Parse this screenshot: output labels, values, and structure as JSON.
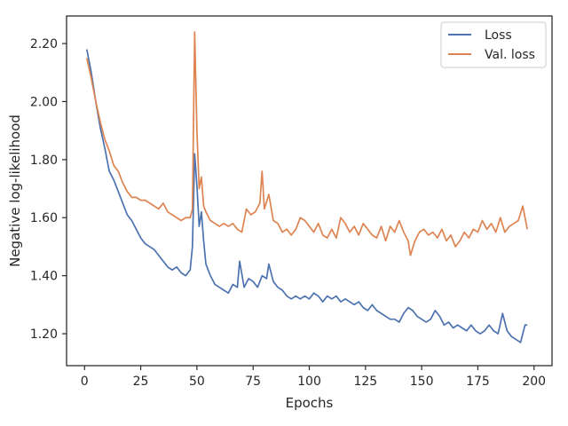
{
  "chart_data": {
    "type": "line",
    "xlabel": "Epochs",
    "ylabel": "Negative log-likelihood",
    "xlim": [
      -8,
      208
    ],
    "ylim": [
      1.09,
      2.295
    ],
    "x_ticks": [
      0,
      25,
      50,
      75,
      100,
      125,
      150,
      175,
      200
    ],
    "x_tick_labels": [
      "0",
      "25",
      "50",
      "75",
      "100",
      "125",
      "150",
      "175",
      "200"
    ],
    "y_ticks": [
      1.2,
      1.4,
      1.6,
      1.8,
      2.0,
      2.2
    ],
    "y_tick_labels": [
      "1.20",
      "1.40",
      "1.60",
      "1.80",
      "2.00",
      "2.20"
    ],
    "grid": false,
    "legend_position": "top-right",
    "series": [
      {
        "name": "Loss",
        "color": "#4c72b0",
        "points": [
          [
            1,
            2.18
          ],
          [
            3,
            2.1
          ],
          [
            5,
            2.0
          ],
          [
            7,
            1.91
          ],
          [
            9,
            1.84
          ],
          [
            11,
            1.76
          ],
          [
            13,
            1.73
          ],
          [
            15,
            1.69
          ],
          [
            17,
            1.65
          ],
          [
            19,
            1.61
          ],
          [
            21,
            1.59
          ],
          [
            23,
            1.56
          ],
          [
            25,
            1.53
          ],
          [
            27,
            1.51
          ],
          [
            29,
            1.5
          ],
          [
            31,
            1.49
          ],
          [
            33,
            1.47
          ],
          [
            35,
            1.45
          ],
          [
            37,
            1.43
          ],
          [
            39,
            1.42
          ],
          [
            41,
            1.43
          ],
          [
            43,
            1.41
          ],
          [
            45,
            1.4
          ],
          [
            47,
            1.42
          ],
          [
            48,
            1.5
          ],
          [
            49,
            1.82
          ],
          [
            50,
            1.71
          ],
          [
            51,
            1.57
          ],
          [
            52,
            1.62
          ],
          [
            53,
            1.52
          ],
          [
            54,
            1.44
          ],
          [
            56,
            1.4
          ],
          [
            58,
            1.37
          ],
          [
            60,
            1.36
          ],
          [
            62,
            1.35
          ],
          [
            64,
            1.34
          ],
          [
            66,
            1.37
          ],
          [
            68,
            1.36
          ],
          [
            69,
            1.45
          ],
          [
            71,
            1.36
          ],
          [
            73,
            1.39
          ],
          [
            75,
            1.38
          ],
          [
            77,
            1.36
          ],
          [
            79,
            1.4
          ],
          [
            81,
            1.39
          ],
          [
            82,
            1.44
          ],
          [
            84,
            1.38
          ],
          [
            86,
            1.36
          ],
          [
            88,
            1.35
          ],
          [
            90,
            1.33
          ],
          [
            92,
            1.32
          ],
          [
            94,
            1.33
          ],
          [
            96,
            1.32
          ],
          [
            98,
            1.33
          ],
          [
            100,
            1.32
          ],
          [
            102,
            1.34
          ],
          [
            104,
            1.33
          ],
          [
            106,
            1.31
          ],
          [
            108,
            1.33
          ],
          [
            110,
            1.32
          ],
          [
            112,
            1.33
          ],
          [
            114,
            1.31
          ],
          [
            116,
            1.32
          ],
          [
            118,
            1.31
          ],
          [
            120,
            1.3
          ],
          [
            122,
            1.31
          ],
          [
            124,
            1.29
          ],
          [
            126,
            1.28
          ],
          [
            128,
            1.3
          ],
          [
            130,
            1.28
          ],
          [
            132,
            1.27
          ],
          [
            134,
            1.26
          ],
          [
            136,
            1.25
          ],
          [
            138,
            1.25
          ],
          [
            140,
            1.24
          ],
          [
            142,
            1.27
          ],
          [
            144,
            1.29
          ],
          [
            146,
            1.28
          ],
          [
            148,
            1.26
          ],
          [
            150,
            1.25
          ],
          [
            152,
            1.24
          ],
          [
            154,
            1.25
          ],
          [
            156,
            1.28
          ],
          [
            158,
            1.26
          ],
          [
            160,
            1.23
          ],
          [
            162,
            1.24
          ],
          [
            164,
            1.22
          ],
          [
            166,
            1.23
          ],
          [
            168,
            1.22
          ],
          [
            170,
            1.21
          ],
          [
            172,
            1.23
          ],
          [
            174,
            1.21
          ],
          [
            176,
            1.2
          ],
          [
            178,
            1.21
          ],
          [
            180,
            1.23
          ],
          [
            182,
            1.21
          ],
          [
            184,
            1.2
          ],
          [
            186,
            1.27
          ],
          [
            188,
            1.21
          ],
          [
            190,
            1.19
          ],
          [
            192,
            1.18
          ],
          [
            194,
            1.17
          ],
          [
            196,
            1.23
          ],
          [
            197,
            1.23
          ]
        ]
      },
      {
        "name": "Val. loss",
        "color": "#dd8452",
        "points": [
          [
            1,
            2.15
          ],
          [
            3,
            2.08
          ],
          [
            5,
            2.0
          ],
          [
            7,
            1.93
          ],
          [
            9,
            1.87
          ],
          [
            11,
            1.83
          ],
          [
            13,
            1.78
          ],
          [
            15,
            1.76
          ],
          [
            17,
            1.72
          ],
          [
            19,
            1.69
          ],
          [
            21,
            1.67
          ],
          [
            23,
            1.67
          ],
          [
            25,
            1.66
          ],
          [
            27,
            1.66
          ],
          [
            29,
            1.65
          ],
          [
            31,
            1.64
          ],
          [
            33,
            1.63
          ],
          [
            35,
            1.65
          ],
          [
            37,
            1.62
          ],
          [
            39,
            1.61
          ],
          [
            41,
            1.6
          ],
          [
            43,
            1.59
          ],
          [
            45,
            1.6
          ],
          [
            47,
            1.6
          ],
          [
            48,
            1.63
          ],
          [
            49,
            2.24
          ],
          [
            50,
            1.9
          ],
          [
            51,
            1.7
          ],
          [
            52,
            1.74
          ],
          [
            53,
            1.64
          ],
          [
            54,
            1.62
          ],
          [
            56,
            1.59
          ],
          [
            58,
            1.58
          ],
          [
            60,
            1.57
          ],
          [
            62,
            1.58
          ],
          [
            64,
            1.57
          ],
          [
            66,
            1.58
          ],
          [
            68,
            1.56
          ],
          [
            70,
            1.55
          ],
          [
            72,
            1.63
          ],
          [
            74,
            1.61
          ],
          [
            76,
            1.62
          ],
          [
            78,
            1.65
          ],
          [
            79,
            1.76
          ],
          [
            80,
            1.63
          ],
          [
            82,
            1.68
          ],
          [
            84,
            1.59
          ],
          [
            86,
            1.58
          ],
          [
            88,
            1.55
          ],
          [
            90,
            1.56
          ],
          [
            92,
            1.54
          ],
          [
            94,
            1.56
          ],
          [
            96,
            1.6
          ],
          [
            98,
            1.59
          ],
          [
            100,
            1.57
          ],
          [
            102,
            1.55
          ],
          [
            104,
            1.58
          ],
          [
            106,
            1.54
          ],
          [
            108,
            1.53
          ],
          [
            110,
            1.56
          ],
          [
            112,
            1.53
          ],
          [
            114,
            1.6
          ],
          [
            116,
            1.58
          ],
          [
            118,
            1.55
          ],
          [
            120,
            1.57
          ],
          [
            122,
            1.54
          ],
          [
            124,
            1.58
          ],
          [
            126,
            1.56
          ],
          [
            128,
            1.54
          ],
          [
            130,
            1.53
          ],
          [
            132,
            1.57
          ],
          [
            134,
            1.52
          ],
          [
            136,
            1.57
          ],
          [
            138,
            1.55
          ],
          [
            140,
            1.59
          ],
          [
            142,
            1.55
          ],
          [
            144,
            1.52
          ],
          [
            145,
            1.47
          ],
          [
            147,
            1.52
          ],
          [
            149,
            1.55
          ],
          [
            151,
            1.56
          ],
          [
            153,
            1.54
          ],
          [
            155,
            1.55
          ],
          [
            157,
            1.53
          ],
          [
            159,
            1.56
          ],
          [
            161,
            1.52
          ],
          [
            163,
            1.54
          ],
          [
            165,
            1.5
          ],
          [
            167,
            1.52
          ],
          [
            169,
            1.55
          ],
          [
            171,
            1.53
          ],
          [
            173,
            1.56
          ],
          [
            175,
            1.55
          ],
          [
            177,
            1.59
          ],
          [
            179,
            1.56
          ],
          [
            181,
            1.58
          ],
          [
            183,
            1.55
          ],
          [
            185,
            1.6
          ],
          [
            187,
            1.55
          ],
          [
            189,
            1.57
          ],
          [
            191,
            1.58
          ],
          [
            193,
            1.59
          ],
          [
            195,
            1.64
          ],
          [
            197,
            1.56
          ]
        ]
      }
    ]
  }
}
